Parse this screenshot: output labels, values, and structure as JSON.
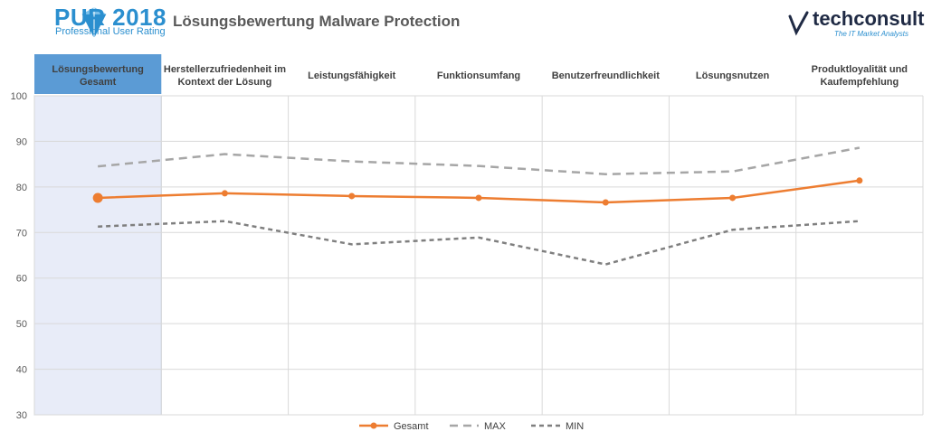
{
  "header": {
    "pur_title": "PUR 2018",
    "pur_subtitle": "Professional User Rating",
    "page_title": "Lösungsbewertung Malware Protection",
    "vendor_name": "techconsult",
    "vendor_tagline": "The IT Market Analysts"
  },
  "colors": {
    "gesamt": "#ed7d31",
    "max": "#a6a6a6",
    "min": "#7f7f7f",
    "highlight_bg": "#e8ecf8",
    "highlight_header": "#5b9bd5",
    "grid": "#d9d9d9"
  },
  "chart_data": {
    "type": "line",
    "categories": [
      [
        "Lösungsbewertung",
        "Gesamt"
      ],
      [
        "Herstellerzufriedenheit im",
        "Kontext der Lösung"
      ],
      [
        "Leistungsfähigkeit"
      ],
      [
        "Funktionsumfang"
      ],
      [
        "Benutzerfreundlichkeit"
      ],
      [
        "Lösungsnutzen"
      ],
      [
        "Produktloyalität und",
        "Kaufempfehlung"
      ]
    ],
    "ylim": [
      30,
      100
    ],
    "yticks": [
      "30",
      "40",
      "50",
      "60",
      "70",
      "80",
      "90",
      "100"
    ],
    "highlight_category": 0,
    "legend_position": "bottom",
    "series": [
      {
        "name": "Gesamt",
        "style": "solid",
        "values": [
          77.6,
          78.6,
          78.0,
          77.6,
          76.6,
          77.6,
          81.4
        ]
      },
      {
        "name": "MAX",
        "style": "dashed",
        "values": [
          84.5,
          87.2,
          85.6,
          84.6,
          82.8,
          83.4,
          88.6
        ]
      },
      {
        "name": "MIN",
        "style": "dotted",
        "values": [
          71.3,
          72.5,
          67.4,
          68.9,
          63.0,
          70.6,
          72.5
        ]
      }
    ]
  }
}
